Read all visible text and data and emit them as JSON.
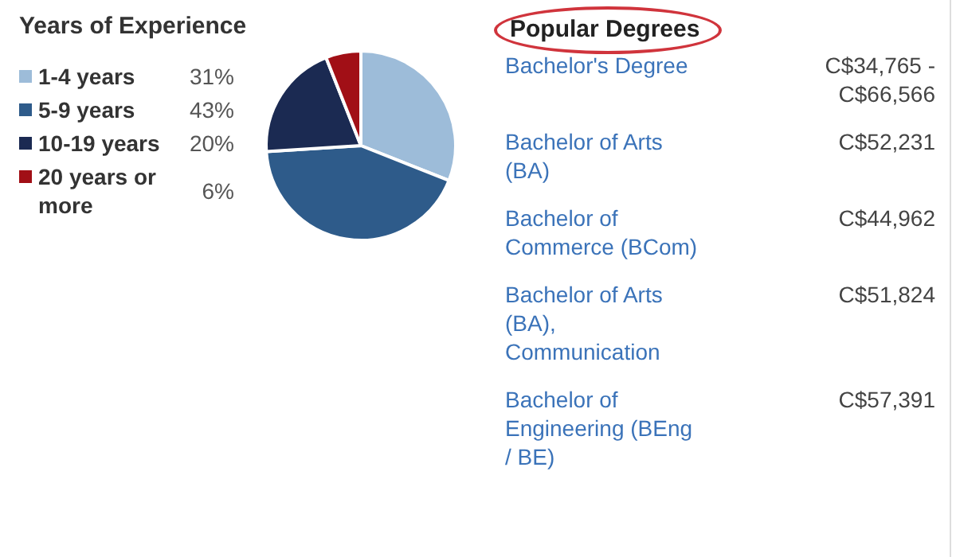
{
  "chart_data": [
    {
      "type": "pie",
      "title": "Years of Experience",
      "categories": [
        "1-4 years",
        "5-9 years",
        "10-19 years",
        "20 years or more"
      ],
      "values": [
        31,
        43,
        20,
        6
      ],
      "colors": [
        "#9dbcd9",
        "#2e5b8a",
        "#1b2a52",
        "#a10f16"
      ],
      "value_labels": [
        "31%",
        "43%",
        "20%",
        "6%"
      ],
      "legend": "left"
    },
    {
      "type": "other",
      "title": "Popular Degrees",
      "categories": [
        "Bachelor's Degree",
        "Bachelor of Arts (BA)",
        "Bachelor of Commerce (BCom)",
        "Bachelor of Arts (BA), Communication",
        "Bachelor of Engineering (BEng / BE)"
      ],
      "value_labels": [
        "C$34,765 - C$66,566",
        "C$52,231",
        "C$44,962",
        "C$51,824",
        "C$57,391"
      ]
    }
  ]
}
